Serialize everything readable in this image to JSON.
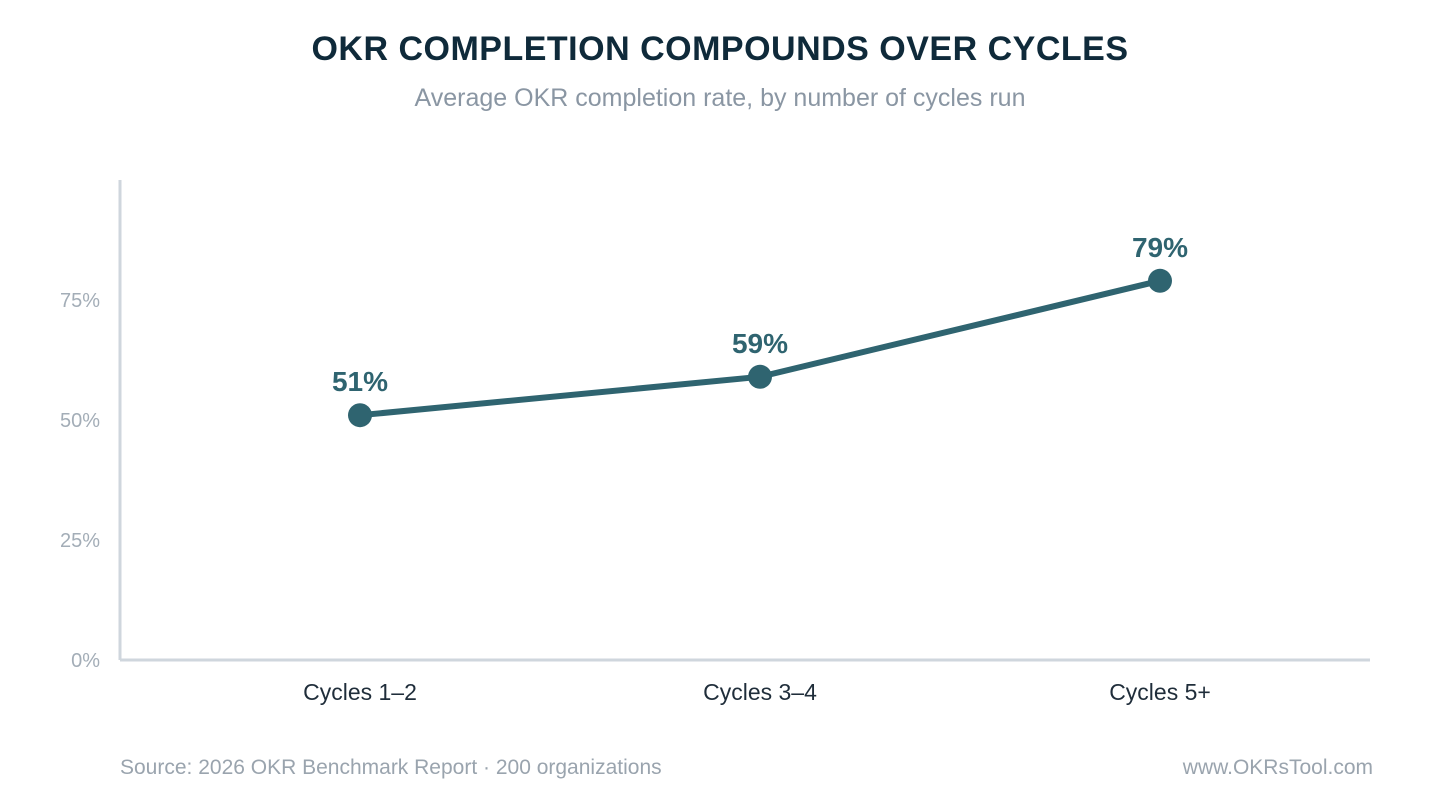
{
  "chart_data": {
    "type": "line",
    "title": "OKR COMPLETION COMPOUNDS OVER CYCLES",
    "subtitle": "Average OKR completion rate, by number of cycles run",
    "categories": [
      "Cycles 1–2",
      "Cycles 3–4",
      "Cycles 5+"
    ],
    "series": [
      {
        "values": [
          51,
          59,
          79
        ],
        "data_labels": [
          "51%",
          "59%",
          "79%"
        ]
      }
    ],
    "y_ticks": [
      0,
      25,
      50,
      75
    ],
    "y_tick_labels": [
      "0%",
      "25%",
      "50%",
      "75%"
    ],
    "ylim": [
      0,
      100
    ],
    "grid": false,
    "legend": "none",
    "colors": {
      "line": "#2f6470",
      "axis": "#cfd6dd",
      "title": "#0f2a3a",
      "muted": "#9aa4ae"
    }
  },
  "footer": {
    "source": "Source: 2026 OKR Benchmark Report · 200 organizations",
    "site": "www.OKRsTool.com"
  }
}
